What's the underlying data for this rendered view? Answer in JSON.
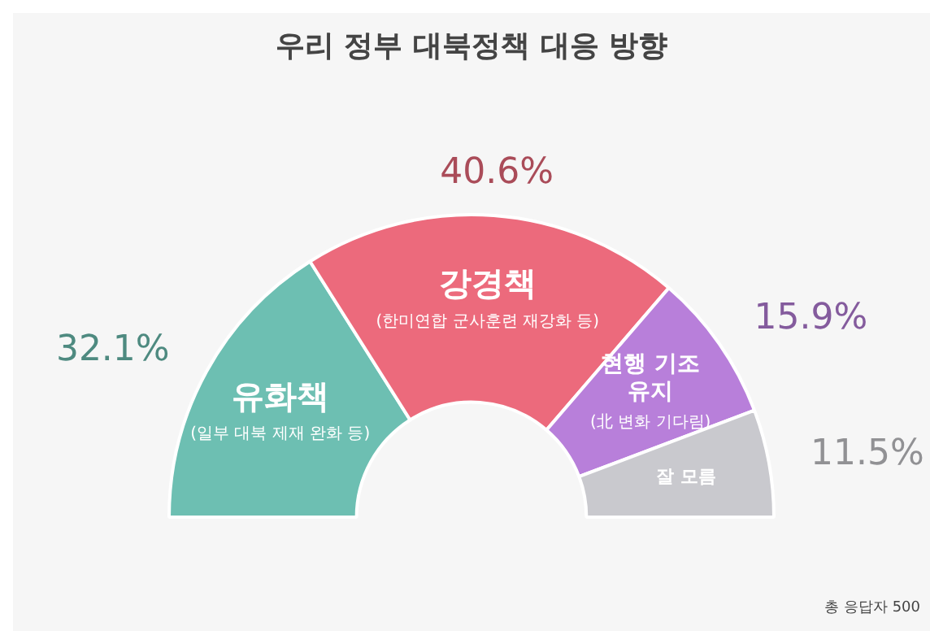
{
  "chart_data": {
    "type": "donut",
    "title": "우리 정부 대북정책 대응 방향",
    "categories": [
      "유화책 (일부 대북 제재 완화 등)",
      "강경책 (한미연합 군사훈련 재강화 등)",
      "현행 기조 유지 (北 변화 기다림)",
      "잘 모름"
    ],
    "values": [
      32.1,
      40.6,
      15.9,
      11.5
    ],
    "colors": [
      "#6dbfb2",
      "#ec6a7c",
      "#b87fda",
      "#c9c9ce"
    ],
    "value_labels": [
      "32.1%",
      "40.6%",
      "15.9%",
      "11.5%"
    ],
    "legend": false,
    "annotations": [
      "총 응답자 500"
    ]
  }
}
